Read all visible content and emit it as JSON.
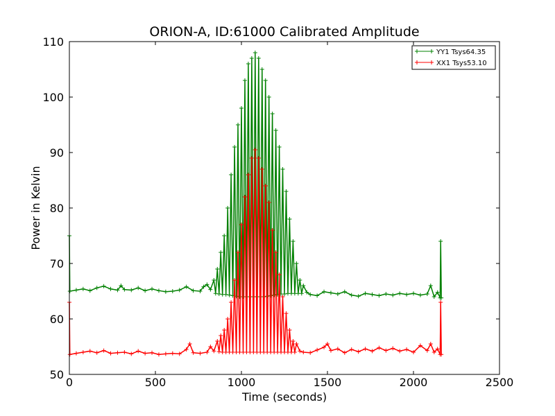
{
  "chart_data": {
    "type": "line",
    "title": "ORION-A, ID:61000 Calibrated Amplitude",
    "xlabel": "Time (seconds)",
    "ylabel": "Power in Kelvin",
    "xlim": [
      0,
      2500
    ],
    "ylim": [
      50,
      110
    ],
    "x_ticks": [
      0,
      500,
      1000,
      1500,
      2000,
      2500
    ],
    "y_ticks": [
      50,
      60,
      70,
      80,
      90,
      100,
      110
    ],
    "legend_position": "top-right",
    "grid": false,
    "series": [
      {
        "name": "YY1 Tsys64.35",
        "color": "#008000",
        "marker": "plus",
        "points": [
          [
            0,
            75
          ],
          [
            3,
            65
          ],
          [
            40,
            65.2
          ],
          [
            80,
            65.4
          ],
          [
            120,
            65.1
          ],
          [
            160,
            65.6
          ],
          [
            200,
            65.9
          ],
          [
            240,
            65.4
          ],
          [
            280,
            65.2
          ],
          [
            300,
            66
          ],
          [
            320,
            65.3
          ],
          [
            360,
            65.2
          ],
          [
            400,
            65.6
          ],
          [
            440,
            65.1
          ],
          [
            480,
            65.4
          ],
          [
            520,
            65.1
          ],
          [
            560,
            64.9
          ],
          [
            600,
            65.0
          ],
          [
            640,
            65.2
          ],
          [
            680,
            65.8
          ],
          [
            720,
            65.1
          ],
          [
            760,
            65.0
          ],
          [
            780,
            65.8
          ],
          [
            800,
            66.2
          ],
          [
            820,
            65.3
          ],
          [
            840,
            67
          ],
          [
            850,
            64.6
          ],
          [
            860,
            69
          ],
          [
            870,
            64.5
          ],
          [
            880,
            72
          ],
          [
            890,
            64.4
          ],
          [
            900,
            75
          ],
          [
            910,
            64.4
          ],
          [
            920,
            80
          ],
          [
            930,
            64.3
          ],
          [
            940,
            86
          ],
          [
            950,
            64.2
          ],
          [
            960,
            91
          ],
          [
            970,
            64.1
          ],
          [
            980,
            95
          ],
          [
            990,
            64.0
          ],
          [
            1000,
            98
          ],
          [
            1010,
            64.0
          ],
          [
            1020,
            103
          ],
          [
            1030,
            64.0
          ],
          [
            1040,
            106
          ],
          [
            1050,
            64.0
          ],
          [
            1060,
            107
          ],
          [
            1070,
            64.0
          ],
          [
            1080,
            108
          ],
          [
            1090,
            64.0
          ],
          [
            1100,
            107
          ],
          [
            1110,
            64.0
          ],
          [
            1120,
            105
          ],
          [
            1130,
            64.0
          ],
          [
            1140,
            103
          ],
          [
            1150,
            64.1
          ],
          [
            1160,
            100
          ],
          [
            1170,
            64.2
          ],
          [
            1180,
            97
          ],
          [
            1190,
            64.3
          ],
          [
            1200,
            94
          ],
          [
            1210,
            64.4
          ],
          [
            1220,
            91
          ],
          [
            1230,
            64.5
          ],
          [
            1240,
            87
          ],
          [
            1250,
            64.5
          ],
          [
            1260,
            83
          ],
          [
            1270,
            64.6
          ],
          [
            1280,
            78
          ],
          [
            1290,
            64.6
          ],
          [
            1300,
            74
          ],
          [
            1310,
            64.6
          ],
          [
            1320,
            70
          ],
          [
            1330,
            64.6
          ],
          [
            1340,
            67
          ],
          [
            1350,
            64.6
          ],
          [
            1360,
            66
          ],
          [
            1380,
            64.8
          ],
          [
            1400,
            64.4
          ],
          [
            1440,
            64.2
          ],
          [
            1480,
            64.9
          ],
          [
            1520,
            64.7
          ],
          [
            1560,
            64.5
          ],
          [
            1600,
            64.9
          ],
          [
            1640,
            64.3
          ],
          [
            1680,
            64.1
          ],
          [
            1720,
            64.6
          ],
          [
            1760,
            64.4
          ],
          [
            1800,
            64.2
          ],
          [
            1840,
            64.5
          ],
          [
            1880,
            64.3
          ],
          [
            1920,
            64.6
          ],
          [
            1960,
            64.4
          ],
          [
            2000,
            64.6
          ],
          [
            2040,
            64.3
          ],
          [
            2080,
            64.5
          ],
          [
            2100,
            66
          ],
          [
            2120,
            64.0
          ],
          [
            2140,
            64.8
          ],
          [
            2155,
            63.8
          ],
          [
            2158,
            74
          ],
          [
            2162,
            63.8
          ]
        ]
      },
      {
        "name": "XX1 Tsys53.10",
        "color": "#ff0000",
        "marker": "plus",
        "points": [
          [
            0,
            63
          ],
          [
            3,
            53.6
          ],
          [
            40,
            53.8
          ],
          [
            80,
            54.0
          ],
          [
            120,
            54.2
          ],
          [
            160,
            53.9
          ],
          [
            200,
            54.3
          ],
          [
            240,
            53.8
          ],
          [
            280,
            53.9
          ],
          [
            320,
            54.0
          ],
          [
            360,
            53.7
          ],
          [
            400,
            54.2
          ],
          [
            440,
            53.8
          ],
          [
            480,
            53.9
          ],
          [
            520,
            53.6
          ],
          [
            560,
            53.7
          ],
          [
            600,
            53.8
          ],
          [
            640,
            53.7
          ],
          [
            680,
            54.5
          ],
          [
            700,
            55.5
          ],
          [
            720,
            53.9
          ],
          [
            760,
            53.8
          ],
          [
            800,
            54.0
          ],
          [
            820,
            55
          ],
          [
            840,
            54.2
          ],
          [
            860,
            56
          ],
          [
            870,
            54.1
          ],
          [
            880,
            57
          ],
          [
            890,
            54.0
          ],
          [
            900,
            58
          ],
          [
            910,
            54.0
          ],
          [
            920,
            60
          ],
          [
            930,
            54.0
          ],
          [
            940,
            63
          ],
          [
            950,
            54.0
          ],
          [
            960,
            67
          ],
          [
            970,
            54.0
          ],
          [
            980,
            72
          ],
          [
            990,
            54.0
          ],
          [
            1000,
            77
          ],
          [
            1010,
            54.0
          ],
          [
            1020,
            82
          ],
          [
            1030,
            54.0
          ],
          [
            1040,
            86
          ],
          [
            1050,
            54.0
          ],
          [
            1060,
            89
          ],
          [
            1070,
            54.0
          ],
          [
            1080,
            90.5
          ],
          [
            1090,
            54.0
          ],
          [
            1100,
            89
          ],
          [
            1110,
            54.0
          ],
          [
            1120,
            87
          ],
          [
            1130,
            54.0
          ],
          [
            1140,
            84
          ],
          [
            1150,
            54.0
          ],
          [
            1160,
            81
          ],
          [
            1170,
            54.0
          ],
          [
            1180,
            76
          ],
          [
            1190,
            54.0
          ],
          [
            1200,
            72
          ],
          [
            1210,
            54.0
          ],
          [
            1220,
            68
          ],
          [
            1230,
            54.0
          ],
          [
            1240,
            64
          ],
          [
            1250,
            54.0
          ],
          [
            1260,
            61
          ],
          [
            1270,
            54.0
          ],
          [
            1280,
            58
          ],
          [
            1290,
            54.0
          ],
          [
            1300,
            56
          ],
          [
            1310,
            54.0
          ],
          [
            1320,
            55.5
          ],
          [
            1340,
            54.2
          ],
          [
            1360,
            54.0
          ],
          [
            1400,
            53.9
          ],
          [
            1440,
            54.4
          ],
          [
            1480,
            54.9
          ],
          [
            1500,
            55.5
          ],
          [
            1520,
            54.3
          ],
          [
            1560,
            54.6
          ],
          [
            1600,
            53.9
          ],
          [
            1640,
            54.5
          ],
          [
            1680,
            54.1
          ],
          [
            1720,
            54.6
          ],
          [
            1760,
            54.2
          ],
          [
            1800,
            54.8
          ],
          [
            1840,
            54.3
          ],
          [
            1880,
            54.7
          ],
          [
            1920,
            54.2
          ],
          [
            1960,
            54.5
          ],
          [
            2000,
            54.0
          ],
          [
            2040,
            55.2
          ],
          [
            2080,
            54.3
          ],
          [
            2100,
            55.5
          ],
          [
            2120,
            54.0
          ],
          [
            2140,
            54.6
          ],
          [
            2155,
            53.6
          ],
          [
            2158,
            63
          ],
          [
            2162,
            53.6
          ]
        ]
      }
    ]
  }
}
